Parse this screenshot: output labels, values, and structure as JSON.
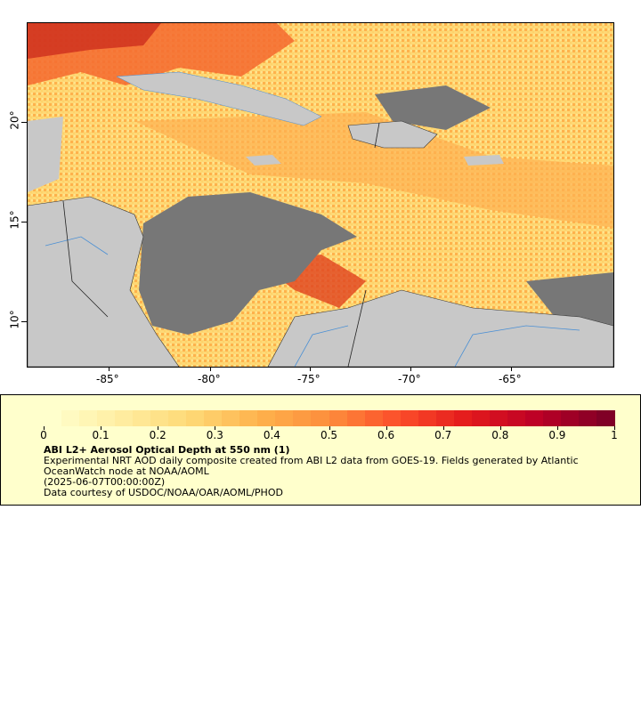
{
  "map": {
    "lat_labels": [
      "20°",
      "15°",
      "10°"
    ],
    "lon_labels": [
      "-85°",
      "-80°",
      "-75°",
      "-70°",
      "-65°"
    ],
    "colors": {
      "land": "#c8c8c8",
      "no_data": "#777777",
      "border": "#333333",
      "river": "#4a8fd4"
    }
  },
  "legend": {
    "ticks": [
      "0",
      "0.1",
      "0.2",
      "0.3",
      "0.4",
      "0.5",
      "0.6",
      "0.7",
      "0.8",
      "0.9",
      "1"
    ],
    "colorscale": [
      "#ffffcc",
      "#ffeda0",
      "#fed976",
      "#feb24c",
      "#fd8d3c",
      "#fc4e2a",
      "#e31a1c",
      "#bd0026",
      "#800026"
    ],
    "title": "ABI L2+ Aerosol Optical Depth at 550 nm (1)",
    "description_1": "Experimental NRT AOD daily composite created from ABI L2 data from GOES-19. Fields generated by Atlantic",
    "description_2": "OceanWatch node at NOAA/AOML",
    "time": "(2025-06-07T00:00:00Z)",
    "credit": "Data courtesy of USDOC/NOAA/OAR/AOML/PHOD"
  }
}
